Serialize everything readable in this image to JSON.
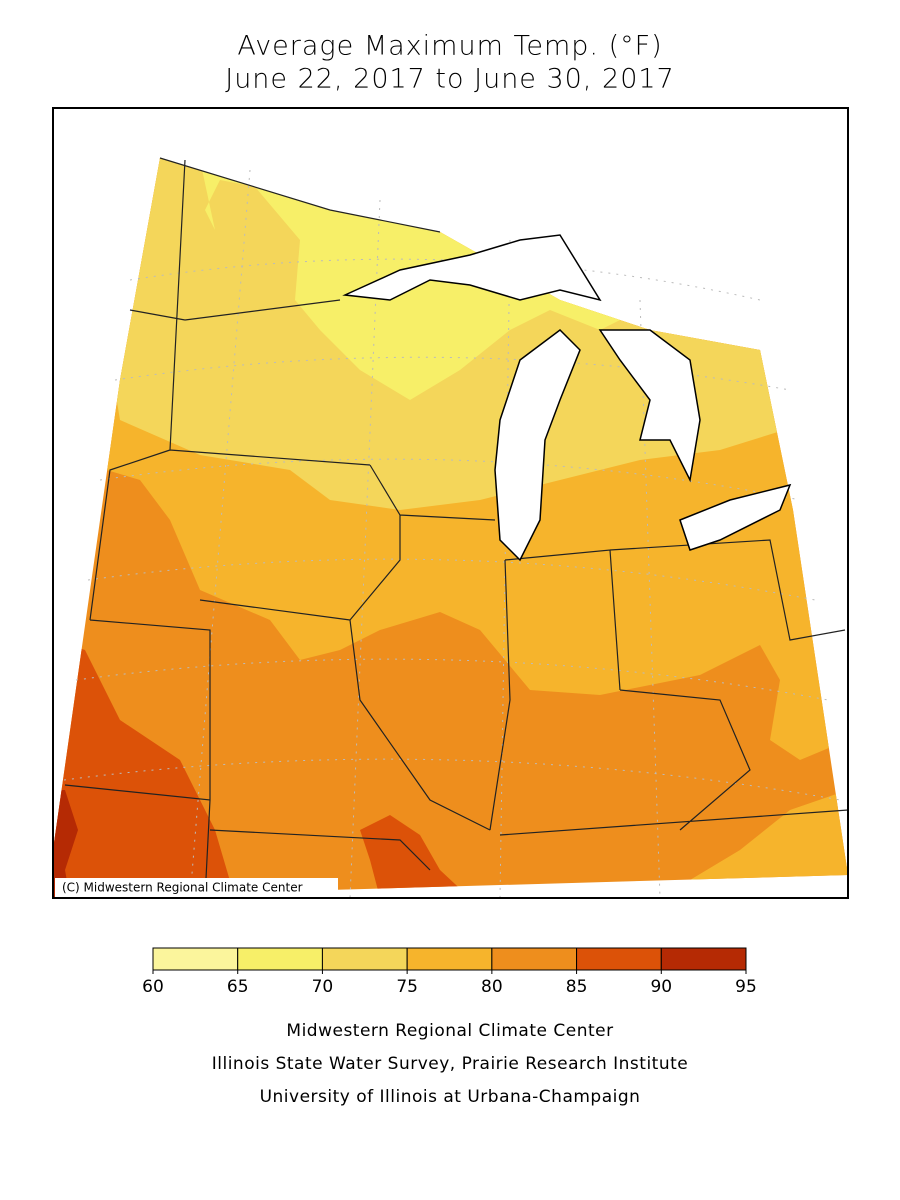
{
  "title": [
    "Average Maximum Temp. (°F)",
    "June 22, 2017 to June 30, 2017"
  ],
  "copyright": "(C) Midwestern Regional Climate Center",
  "legend": {
    "ticks": [
      60,
      65,
      70,
      75,
      80,
      85,
      90,
      95
    ],
    "colors": [
      "#fbf59c",
      "#f7ef68",
      "#f4d65a",
      "#f6b42c",
      "#ee8e1d",
      "#dc5208",
      "#b52a04"
    ]
  },
  "footer": [
    "Midwestern Regional Climate Center",
    "Illinois State Water Survey, Prairie Research Institute",
    "University of Illinois at Urbana-Champaign"
  ]
}
